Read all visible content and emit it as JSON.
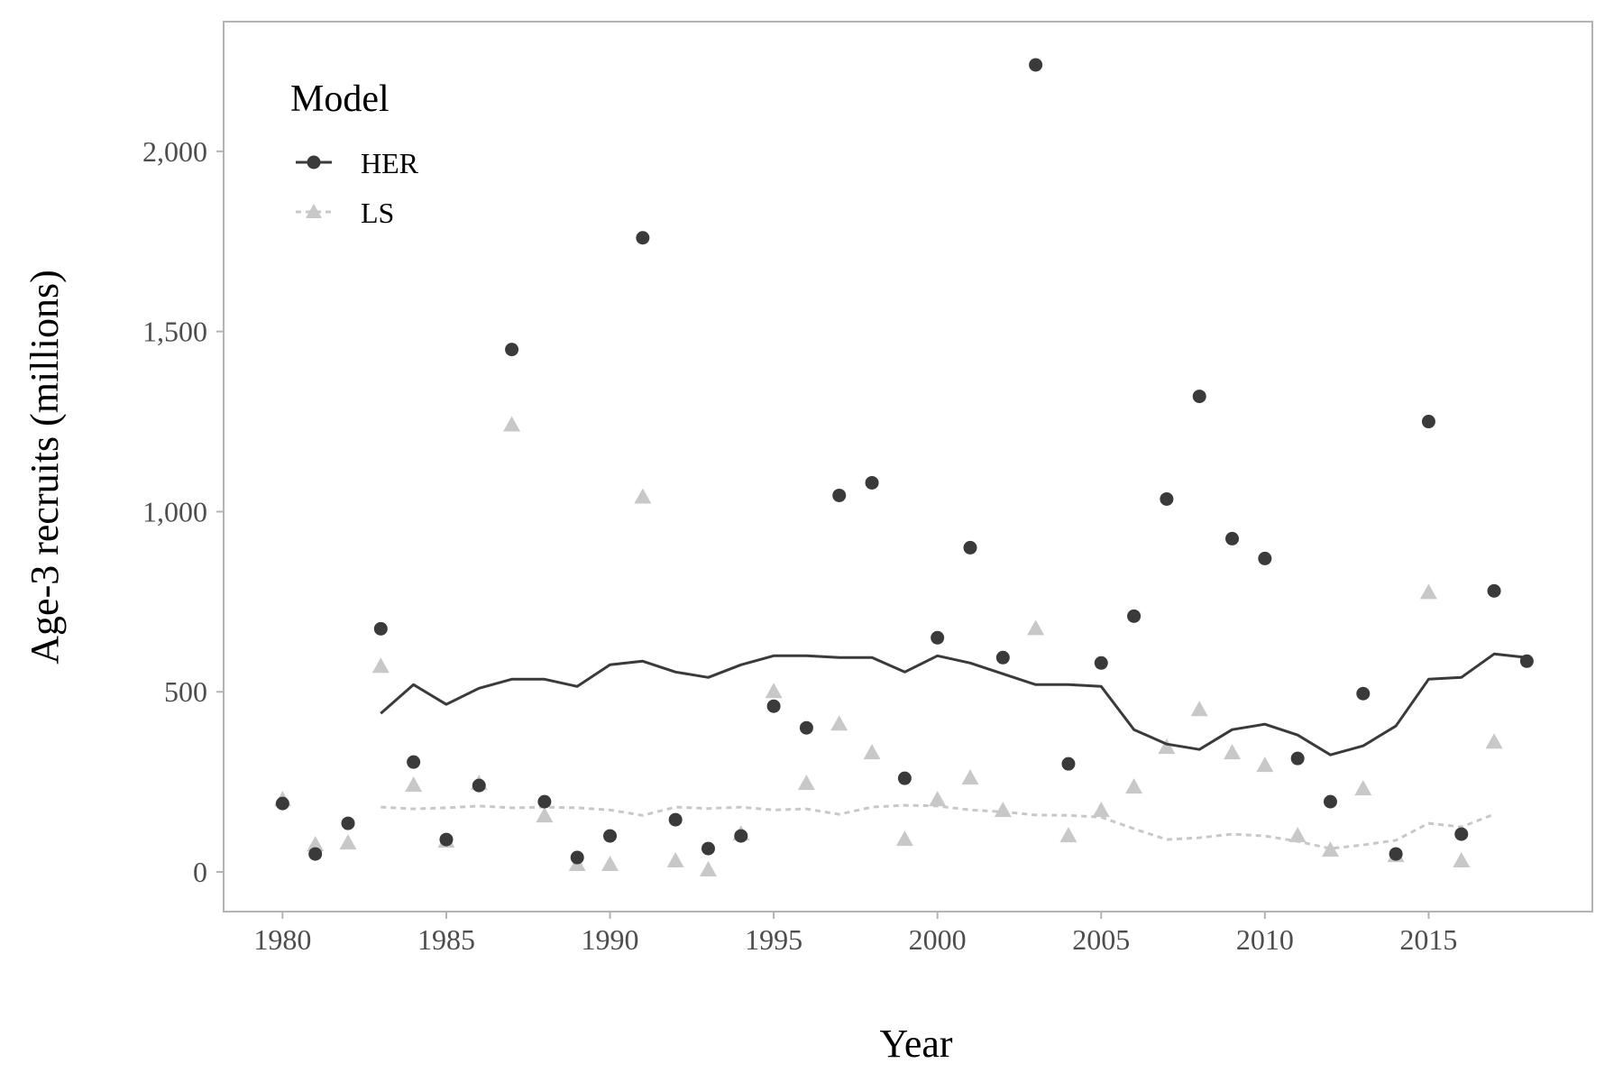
{
  "colors": {
    "HER": "#3a3a3a",
    "LS": "#c8c8c8",
    "panel_border": "#b3b3b3",
    "axis_text": "#4d4d4d"
  },
  "legend": {
    "title": "Model",
    "items": [
      {
        "label": "HER",
        "marker": "circle",
        "line": "solid"
      },
      {
        "label": "LS",
        "marker": "triangle",
        "line": "dashed"
      }
    ]
  },
  "chart_data": {
    "type": "scatter",
    "xlabel": "Year",
    "ylabel": "Age-3 recruits (millions)",
    "xlim": [
      1978.2,
      2020.0
    ],
    "ylim": [
      -110,
      2360
    ],
    "x_ticks": [
      1980,
      1985,
      1990,
      1995,
      2000,
      2005,
      2010,
      2015
    ],
    "y_ticks": [
      0,
      500,
      1000,
      1500,
      2000
    ],
    "y_tick_labels": [
      "0",
      "500",
      "1,000",
      "1,500",
      "2,000"
    ],
    "grid": false,
    "legend_position": "top-left",
    "series": [
      {
        "name": "HER",
        "marker": "circle",
        "points": {
          "x": [
            1980,
            1981,
            1982,
            1983,
            1984,
            1985,
            1986,
            1987,
            1988,
            1989,
            1990,
            1991,
            1992,
            1993,
            1994,
            1995,
            1996,
            1997,
            1998,
            1999,
            2000,
            2001,
            2002,
            2003,
            2004,
            2005,
            2006,
            2007,
            2008,
            2009,
            2010,
            2011,
            2012,
            2013,
            2014,
            2015,
            2016,
            2017,
            2018
          ],
          "y": [
            190,
            50,
            135,
            675,
            305,
            90,
            240,
            1450,
            195,
            40,
            100,
            1760,
            145,
            65,
            100,
            460,
            400,
            1045,
            1080,
            260,
            650,
            900,
            595,
            2240,
            300,
            580,
            710,
            1035,
            1320,
            925,
            870,
            315,
            195,
            495,
            50,
            1250,
            105,
            780,
            585
          ]
        },
        "line": {
          "x": [
            1983,
            1984,
            1985,
            1986,
            1987,
            1988,
            1989,
            1990,
            1991,
            1992,
            1993,
            1994,
            1995,
            1996,
            1997,
            1998,
            1999,
            2000,
            2001,
            2002,
            2003,
            2004,
            2005,
            2006,
            2007,
            2008,
            2009,
            2010,
            2011,
            2012,
            2013,
            2014,
            2015,
            2016,
            2017,
            2018
          ],
          "y": [
            440,
            520,
            465,
            510,
            535,
            535,
            515,
            575,
            585,
            555,
            540,
            575,
            600,
            600,
            595,
            595,
            555,
            600,
            580,
            550,
            520,
            520,
            515,
            395,
            355,
            340,
            395,
            410,
            380,
            325,
            350,
            405,
            535,
            540,
            605,
            595
          ]
        }
      },
      {
        "name": "LS",
        "marker": "triangle",
        "points": {
          "x": [
            1980,
            1981,
            1982,
            1983,
            1984,
            1985,
            1986,
            1987,
            1988,
            1989,
            1990,
            1991,
            1992,
            1993,
            1994,
            1995,
            1996,
            1997,
            1998,
            1999,
            2000,
            2001,
            2002,
            2003,
            2004,
            2005,
            2006,
            2007,
            2008,
            2009,
            2010,
            2011,
            2012,
            2013,
            2014,
            2015,
            2016,
            2017
          ],
          "y": [
            200,
            75,
            80,
            570,
            240,
            85,
            245,
            1240,
            155,
            20,
            20,
            1040,
            30,
            5,
            105,
            500,
            245,
            410,
            330,
            90,
            200,
            260,
            170,
            675,
            100,
            170,
            235,
            345,
            450,
            330,
            295,
            100,
            60,
            230,
            45,
            775,
            30,
            360
          ]
        },
        "line": {
          "x": [
            1983,
            1984,
            1985,
            1986,
            1987,
            1988,
            1989,
            1990,
            1991,
            1992,
            1993,
            1994,
            1995,
            1996,
            1997,
            1998,
            1999,
            2000,
            2001,
            2002,
            2003,
            2004,
            2005,
            2006,
            2007,
            2008,
            2009,
            2010,
            2011,
            2012,
            2013,
            2014,
            2015,
            2016,
            2017
          ],
          "y": [
            180,
            175,
            178,
            183,
            178,
            180,
            178,
            172,
            157,
            180,
            176,
            180,
            172,
            175,
            160,
            180,
            185,
            183,
            172,
            167,
            158,
            157,
            152,
            120,
            90,
            95,
            105,
            100,
            85,
            65,
            75,
            88,
            135,
            125,
            160
          ]
        }
      }
    ]
  }
}
